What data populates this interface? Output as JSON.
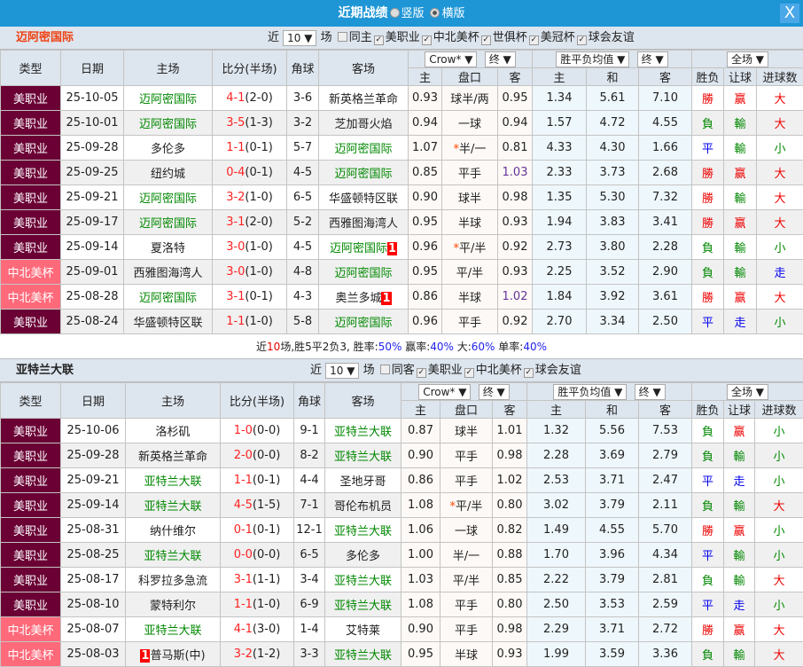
{
  "window": {
    "title": "近期战绩",
    "view_vertical": "竖版",
    "view_horizontal": "横版",
    "close_label": "X"
  },
  "colors": {
    "titlebar": "#1e96d6",
    "league_mls": "#6a0034",
    "league_cup": "#ff6a7a",
    "win": "#e00000",
    "lose": "#008000",
    "draw": "#0000ee"
  },
  "headers": {
    "type": "类型",
    "date": "日期",
    "home": "主场",
    "score": "比分(半场)",
    "corner": "角球",
    "away": "客场",
    "company": "Crow*",
    "final1": "终",
    "odds_type": "胜平负均值",
    "final2": "终",
    "scope": "全场",
    "h": "主",
    "handicap": "盘口",
    "a": "客",
    "e1": "主",
    "ex": "和",
    "e2": "客",
    "wl": "胜负",
    "rq": "让球",
    "ou": "进球数"
  },
  "sections": [
    {
      "team": "迈阿密国际",
      "near": "近",
      "count": "10",
      "unit": "场",
      "same_label": "同主",
      "filters": [
        "美职业",
        "中北美杯",
        "世俱杯",
        "美冠杯",
        "球会友谊"
      ],
      "rows": [
        {
          "t": "美职业",
          "d": "25-10-05",
          "h": "迈阿密国际",
          "s": "4-1",
          "hf": "(2-0)",
          "c": "3-6",
          "a": "新英格兰革命",
          "o1": "0.93",
          "p": "球半/两",
          "o2": "0.95",
          "e1": "1.34",
          "ex": "5.61",
          "e2": "7.10",
          "wl": "勝",
          "rq": "赢",
          "ou": "大"
        },
        {
          "t": "美职业",
          "d": "25-10-01",
          "h": "迈阿密国际",
          "s": "3-5",
          "hf": "(1-3)",
          "c": "3-2",
          "a": "芝加哥火焰",
          "o1": "0.94",
          "p": "一球",
          "o2": "0.94",
          "e1": "1.57",
          "ex": "4.72",
          "e2": "4.55",
          "wl": "負",
          "rq": "輸",
          "ou": "大"
        },
        {
          "t": "美职业",
          "d": "25-09-28",
          "h": "多伦多",
          "s": "1-1",
          "hf": "(0-1)",
          "c": "5-7",
          "a": "迈阿密国际",
          "o1": "1.07",
          "p": "半/一",
          "star": "*",
          "o2": "0.81",
          "e1": "4.33",
          "ex": "4.30",
          "e2": "1.66",
          "wl": "平",
          "rq": "輸",
          "ou": "小"
        },
        {
          "t": "美职业",
          "d": "25-09-25",
          "h": "纽约城",
          "s": "0-4",
          "hf": "(0-1)",
          "c": "4-5",
          "a": "迈阿密国际",
          "o1": "0.85",
          "p": "平手",
          "o2": "1.03",
          "o2c": "purple",
          "e1": "2.33",
          "ex": "3.73",
          "e2": "2.68",
          "wl": "勝",
          "rq": "赢",
          "ou": "大"
        },
        {
          "t": "美职业",
          "d": "25-09-21",
          "h": "迈阿密国际",
          "s": "3-2",
          "hf": "(1-0)",
          "c": "6-5",
          "a": "华盛顿特区联",
          "o1": "0.90",
          "p": "球半",
          "o2": "0.98",
          "e1": "1.35",
          "ex": "5.30",
          "e2": "7.32",
          "wl": "勝",
          "rq": "輸",
          "ou": "大"
        },
        {
          "t": "美职业",
          "d": "25-09-17",
          "h": "迈阿密国际",
          "s": "3-1",
          "hf": "(2-0)",
          "c": "5-2",
          "a": "西雅图海湾人",
          "o1": "0.95",
          "p": "半球",
          "o2": "0.93",
          "e1": "1.94",
          "ex": "3.83",
          "e2": "3.41",
          "wl": "勝",
          "rq": "赢",
          "ou": "大"
        },
        {
          "t": "美职业",
          "d": "25-09-14",
          "h": "夏洛特",
          "s": "3-0",
          "hf": "(1-0)",
          "c": "4-5",
          "a": "迈阿密国际",
          "acard": "1",
          "o1": "0.96",
          "p": "平/半",
          "star": "*",
          "o2": "0.92",
          "e1": "2.73",
          "ex": "3.80",
          "e2": "2.28",
          "wl": "負",
          "rq": "輸",
          "ou": "小"
        },
        {
          "t": "中北美杯",
          "d": "25-09-01",
          "h": "西雅图海湾人",
          "s": "3-0",
          "hf": "(1-0)",
          "c": "4-8",
          "a": "迈阿密国际",
          "o1": "0.95",
          "p": "平/半",
          "o2": "0.93",
          "e1": "2.25",
          "ex": "3.52",
          "e2": "2.90",
          "wl": "負",
          "rq": "輸",
          "ou": "走"
        },
        {
          "t": "中北美杯",
          "d": "25-08-28",
          "h": "迈阿密国际",
          "s": "3-1",
          "hf": "(0-1)",
          "c": "4-3",
          "a": "奥兰多城",
          "acard": "1",
          "o1": "0.86",
          "p": "半球",
          "o2": "1.02",
          "o2c": "purple",
          "e1": "1.84",
          "ex": "3.92",
          "e2": "3.61",
          "wl": "勝",
          "rq": "赢",
          "ou": "大"
        },
        {
          "t": "美职业",
          "d": "25-08-24",
          "h": "华盛顿特区联",
          "s": "1-1",
          "hf": "(1-0)",
          "c": "5-8",
          "a": "迈阿密国际",
          "o1": "0.96",
          "p": "平手",
          "o2": "0.92",
          "e1": "2.70",
          "ex": "3.34",
          "e2": "2.50",
          "wl": "平",
          "rq": "走",
          "ou": "小"
        }
      ],
      "summary": {
        "p1": "近",
        "n": "10",
        "p2": "场,胜5平2负3, 胜率:",
        "win_rate": "50%",
        "p3": " 赢率:",
        "cover_rate": "40%",
        "p4": " 大:",
        "over_rate": "60%",
        "p5": " 单率:",
        "odd_rate": "40%"
      }
    },
    {
      "team": "亚特兰大联",
      "near": "近",
      "count": "10",
      "unit": "场",
      "same_label": "同客",
      "filters": [
        "美职业",
        "中北美杯",
        "球会友谊"
      ],
      "rows": [
        {
          "t": "美职业",
          "d": "25-10-06",
          "h": "洛杉矶",
          "s": "1-0",
          "hf": "(0-0)",
          "c": "9-1",
          "a": "亚特兰大联",
          "o1": "0.87",
          "p": "球半",
          "o2": "1.01",
          "e1": "1.32",
          "ex": "5.56",
          "e2": "7.53",
          "wl": "負",
          "rq": "赢",
          "ou": "小"
        },
        {
          "t": "美职业",
          "d": "25-09-28",
          "h": "新英格兰革命",
          "s": "2-0",
          "hf": "(0-0)",
          "c": "8-2",
          "a": "亚特兰大联",
          "o1": "0.90",
          "p": "平手",
          "o2": "0.98",
          "e1": "2.28",
          "ex": "3.69",
          "e2": "2.79",
          "wl": "負",
          "rq": "輸",
          "ou": "小"
        },
        {
          "t": "美职业",
          "d": "25-09-21",
          "h": "亚特兰大联",
          "s": "1-1",
          "hf": "(0-1)",
          "c": "4-4",
          "a": "圣地牙哥",
          "o1": "0.86",
          "p": "平手",
          "o2": "1.02",
          "e1": "2.53",
          "ex": "3.71",
          "e2": "2.47",
          "wl": "平",
          "rq": "走",
          "ou": "小"
        },
        {
          "t": "美职业",
          "d": "25-09-14",
          "h": "亚特兰大联",
          "s": "4-5",
          "hf": "(1-5)",
          "c": "7-1",
          "a": "哥伦布机员",
          "o1": "1.08",
          "p": "平/半",
          "star": "*",
          "o2": "0.80",
          "e1": "3.02",
          "ex": "3.79",
          "e2": "2.11",
          "wl": "負",
          "rq": "輸",
          "ou": "大"
        },
        {
          "t": "美职业",
          "d": "25-08-31",
          "h": "纳什维尔",
          "s": "0-1",
          "hf": "(0-1)",
          "c": "12-1",
          "a": "亚特兰大联",
          "o1": "1.06",
          "p": "一球",
          "o2": "0.82",
          "e1": "1.49",
          "ex": "4.55",
          "e2": "5.70",
          "wl": "勝",
          "rq": "赢",
          "ou": "小"
        },
        {
          "t": "美职业",
          "d": "25-08-25",
          "h": "亚特兰大联",
          "s": "0-0",
          "hf": "(0-0)",
          "c": "6-5",
          "a": "多伦多",
          "o1": "1.00",
          "p": "半/一",
          "o2": "0.88",
          "e1": "1.70",
          "ex": "3.96",
          "e2": "4.34",
          "wl": "平",
          "rq": "輸",
          "ou": "小"
        },
        {
          "t": "美职业",
          "d": "25-08-17",
          "h": "科罗拉多急流",
          "s": "3-1",
          "hf": "(1-1)",
          "c": "3-4",
          "a": "亚特兰大联",
          "o1": "1.03",
          "p": "平/半",
          "o2": "0.85",
          "e1": "2.22",
          "ex": "3.79",
          "e2": "2.81",
          "wl": "負",
          "rq": "輸",
          "ou": "大"
        },
        {
          "t": "美职业",
          "d": "25-08-10",
          "h": "蒙特利尔",
          "s": "1-1",
          "hf": "(1-0)",
          "c": "6-9",
          "a": "亚特兰大联",
          "o1": "1.08",
          "p": "平手",
          "o2": "0.80",
          "e1": "2.50",
          "ex": "3.53",
          "e2": "2.59",
          "wl": "平",
          "rq": "走",
          "ou": "小"
        },
        {
          "t": "中北美杯",
          "d": "25-08-07",
          "h": "亚特兰大联",
          "s": "4-1",
          "hf": "(3-0)",
          "c": "1-4",
          "a": "艾特莱",
          "o1": "0.90",
          "p": "平手",
          "o2": "0.98",
          "e1": "2.29",
          "ex": "3.71",
          "e2": "2.72",
          "wl": "勝",
          "rq": "赢",
          "ou": "大"
        },
        {
          "t": "中北美杯",
          "d": "25-08-03",
          "h": "普马斯(中)",
          "hcard": "1",
          "s": "3-2",
          "hf": "(1-2)",
          "c": "3-3",
          "a": "亚特兰大联",
          "o1": "0.95",
          "p": "半球",
          "o2": "0.93",
          "e1": "1.99",
          "ex": "3.59",
          "e2": "3.36",
          "wl": "負",
          "rq": "輸",
          "ou": "大"
        }
      ]
    }
  ]
}
